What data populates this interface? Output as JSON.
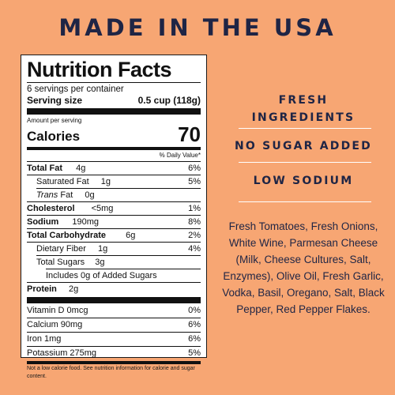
{
  "headline": "MADE IN THE USA",
  "nutrition": {
    "title": "Nutrition Facts",
    "servings": "6 servings per container",
    "serving_size_label": "Serving size",
    "serving_size_value": "0.5 cup (118g)",
    "amount_per_serving": "Amount per serving",
    "calories_label": "Calories",
    "calories_value": "70",
    "daily_value_header": "% Daily Value*",
    "rows": [
      {
        "label": "Total Fat",
        "amount": "4g",
        "dv": "6%"
      },
      {
        "label": "Saturated Fat",
        "amount": "1g",
        "dv": "5%"
      },
      {
        "label": "Trans",
        "label_suffix": "Fat",
        "amount": "0g",
        "dv": ""
      },
      {
        "label": "Cholesterol",
        "amount": "<5mg",
        "dv": "1%"
      },
      {
        "label": "Sodium",
        "amount": "190mg",
        "dv": "8%"
      },
      {
        "label": "Total Carbohydrate",
        "amount": "6g",
        "dv": "2%"
      },
      {
        "label": "Dietary Fiber",
        "amount": "1g",
        "dv": "4%"
      },
      {
        "label": "Total Sugars",
        "amount": "3g",
        "dv": ""
      },
      {
        "label": "Includes 0g of Added Sugars",
        "amount": "",
        "dv": ""
      },
      {
        "label": "Protein",
        "amount": "2g",
        "dv": ""
      }
    ],
    "vitamins": [
      {
        "label": "Vitamin D 0mcg",
        "dv": "0%"
      },
      {
        "label": "Calcium 90mg",
        "dv": "6%"
      },
      {
        "label": "Iron 1mg",
        "dv": "6%"
      },
      {
        "label": "Potassium 275mg",
        "dv": "5%"
      }
    ],
    "footnote": "Not a low calorie food. See nutrition information for calorie and sugar content."
  },
  "claims": {
    "fresh_line1": "FRESH",
    "fresh_line2": "INGREDIENTS",
    "no_sugar": "NO SUGAR ADDED",
    "low_sodium": "LOW SODIUM"
  },
  "ingredients": "Fresh Tomatoes, Fresh Onions, White Wine, Parmesan Cheese (Milk, Cheese Cultures, Salt, Enzymes), Olive Oil, Fresh Garlic, Vodka, Basil, Oregano, Salt, Black Pepper, Red Pepper Flakes.",
  "colors": {
    "background": "#F7A673",
    "text": "#1F2545",
    "divider": "#FFFFFF"
  }
}
